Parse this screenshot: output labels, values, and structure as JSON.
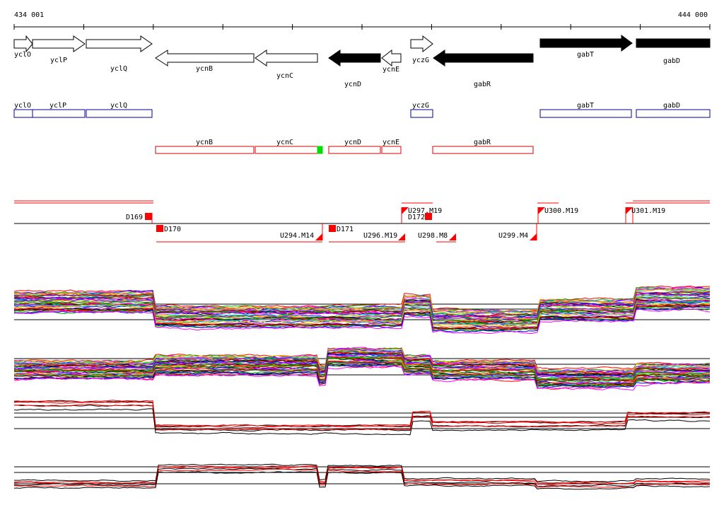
{
  "genome_range": {
    "start_label": "434 001",
    "end_label": "444 000"
  },
  "genes": [
    {
      "name": "yclO",
      "strand": "+",
      "fill": "open"
    },
    {
      "name": "yclP",
      "strand": "+",
      "fill": "open"
    },
    {
      "name": "yclQ",
      "strand": "+",
      "fill": "open"
    },
    {
      "name": "ycnB",
      "strand": "-",
      "fill": "open"
    },
    {
      "name": "ycnC",
      "strand": "-",
      "fill": "open"
    },
    {
      "name": "ycnD",
      "strand": "-",
      "fill": "solid"
    },
    {
      "name": "ycnE",
      "strand": "-",
      "fill": "open"
    },
    {
      "name": "yczG",
      "strand": "+",
      "fill": "open"
    },
    {
      "name": "gabR",
      "strand": "-",
      "fill": "solid"
    },
    {
      "name": "gabT",
      "strand": "+",
      "fill": "solid"
    },
    {
      "name": "gabD",
      "strand": "+",
      "fill": "solid"
    }
  ],
  "forward_boxes": [
    "yclO",
    "yclP",
    "yclQ",
    "yczG",
    "gabT",
    "gabD"
  ],
  "reverse_boxes": [
    "ycnB",
    "ycnC",
    "ycnD",
    "ycnE",
    "gabR"
  ],
  "segments": {
    "downstream": [
      "D169",
      "D170",
      "D171",
      "D172"
    ],
    "upstream": [
      "U294.M14",
      "U296.M19",
      "U297.M19",
      "U298.M8",
      "U299.M4",
      "U300.M19",
      "U301.M19"
    ]
  },
  "colors": {
    "forward_box": "#000099",
    "reverse_box": "#dd0000",
    "highlight": "#00dd00",
    "segment": "#ff0000",
    "profile_lines": [
      "#ff0000",
      "#00aa00",
      "#0000ff",
      "#ff00ff",
      "#00cccc",
      "#cccc00",
      "#ff8800",
      "#8800ff",
      "#888888",
      "#008800",
      "#aa0000",
      "#000000"
    ]
  }
}
